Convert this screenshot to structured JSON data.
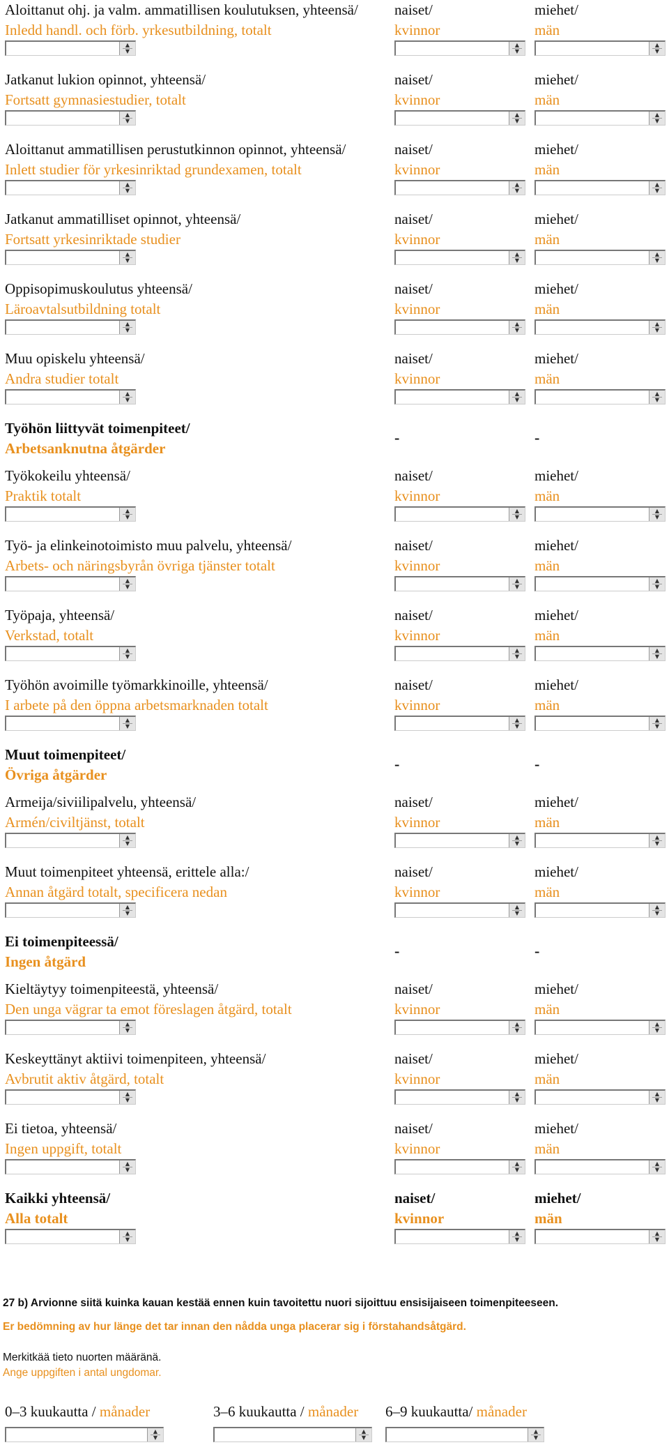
{
  "rows": [
    {
      "fi": "Aloittanut ohj. ja valm. ammatillisen koulutuksen, yhteensä/",
      "sv": "Inledd handl. och förb. yrkesutbildning, totalt",
      "col2_fi": "naiset/",
      "col2_sv": "kvinnor",
      "col3_fi": "miehet/",
      "col3_sv": "män"
    },
    {
      "fi": "Jatkanut lukion opinnot, yhteensä/",
      "sv": "Fortsatt gymnasiestudier, totalt",
      "col2_fi": "naiset/",
      "col2_sv": "kvinnor",
      "col3_fi": "miehet/",
      "col3_sv": "män"
    },
    {
      "fi": "Aloittanut ammatillisen perustutkinnon opinnot, yhteensä/",
      "sv": "Inlett studier för yrkesinriktad grundexamen, totalt",
      "col2_fi": "naiset/",
      "col2_sv": "kvinnor",
      "col3_fi": "miehet/",
      "col3_sv": "män"
    },
    {
      "fi": "Jatkanut ammatilliset opinnot, yhteensä/",
      "sv": "Fortsatt yrkesinriktade studier",
      "col2_fi": "naiset/",
      "col2_sv": "kvinnor",
      "col3_fi": "miehet/",
      "col3_sv": "män"
    },
    {
      "fi": "Oppisopimuskoulutus yhteensä/",
      "sv": "Läroavtalsutbildning totalt",
      "col2_fi": "naiset/",
      "col2_sv": "kvinnor",
      "col3_fi": "miehet/",
      "col3_sv": "män"
    },
    {
      "fi": "Muu opiskelu yhteensä/",
      "sv": "Andra studier totalt",
      "col2_fi": "naiset/",
      "col2_sv": "kvinnor",
      "col3_fi": "miehet/",
      "col3_sv": "män"
    },
    {
      "fi": "Työkokeilu yhteensä/",
      "sv": "Praktik totalt",
      "col2_fi": "naiset/",
      "col2_sv": "kvinnor",
      "col3_fi": "miehet/",
      "col3_sv": "män"
    },
    {
      "fi": "Työ- ja elinkeinotoimisto muu palvelu, yhteensä/",
      "sv": "Arbets- och näringsbyrån övriga tjänster totalt",
      "col2_fi": "naiset/",
      "col2_sv": "kvinnor",
      "col3_fi": "miehet/",
      "col3_sv": "män"
    },
    {
      "fi": "Työpaja, yhteensä/",
      "sv": "Verkstad, totalt",
      "col2_fi": "naiset/",
      "col2_sv": "kvinnor",
      "col3_fi": "miehet/",
      "col3_sv": "män"
    },
    {
      "fi": "Työhön avoimille työmarkkinoille, yhteensä/",
      "sv": "I arbete på den öppna arbetsmarknaden totalt",
      "col2_fi": "naiset/",
      "col2_sv": "kvinnor",
      "col3_fi": "miehet/",
      "col3_sv": "män"
    },
    {
      "fi": "Armeija/siviilipalvelu, yhteensä/",
      "sv": "Armén/civiltjänst, totalt",
      "col2_fi": "naiset/",
      "col2_sv": "kvinnor",
      "col3_fi": "miehet/",
      "col3_sv": "män"
    },
    {
      "fi": "Muut toimenpiteet yhteensä, erittele alla:/",
      "sv": "Annan åtgärd totalt, specificera nedan",
      "col2_fi": "naiset/",
      "col2_sv": "kvinnor",
      "col3_fi": "miehet/",
      "col3_sv": "män"
    },
    {
      "fi": "Kieltäytyy toimenpiteestä, yhteensä/",
      "sv": "Den unga vägrar ta emot föreslagen åtgärd, totalt",
      "col2_fi": "naiset/",
      "col2_sv": "kvinnor",
      "col3_fi": "miehet/",
      "col3_sv": "män"
    },
    {
      "fi": "Keskeyttänyt aktiivi toimenpiteen, yhteensä/",
      "sv": "Avbrutit aktiv åtgärd, totalt",
      "col2_fi": "naiset/",
      "col2_sv": "kvinnor",
      "col3_fi": "miehet/",
      "col3_sv": "män"
    },
    {
      "fi": "Ei tietoa, yhteensä/",
      "sv": "Ingen uppgift, totalt",
      "col2_fi": "naiset/",
      "col2_sv": "kvinnor",
      "col3_fi": "miehet/",
      "col3_sv": "män"
    },
    {
      "fi": "Kaikki yhteensä/",
      "sv": "Alla totalt",
      "col2_fi": "naiset/",
      "col2_sv": "kvinnor",
      "col3_fi": "miehet/",
      "col3_sv": "män"
    }
  ],
  "sections": [
    {
      "fi": "Työhön liittyvät toimenpiteet/",
      "sv": "Arbetsanknutna åtgärder",
      "dash2": "-",
      "dash3": "-"
    },
    {
      "fi": "Muut toimenpiteet/",
      "sv": "Övriga åtgärder",
      "dash2": "-",
      "dash3": "-"
    },
    {
      "fi": "Ei toimenpiteessä/",
      "sv": "Ingen åtgärd",
      "dash2": "-",
      "dash3": "-"
    }
  ],
  "question": {
    "title_fi": "27 b) Arvionne siitä kuinka kauan kestää ennen kuin tavoitettu nuori sijoittuu ensisijaiseen toimenpiteeseen.",
    "title_sv": "Er bedömning av hur länge det tar innan den nådda unga placerar sig i förstahandsåtgärd.",
    "instr_fi": "Merkitkää tieto nuorten määränä.",
    "instr_sv": "Ange uppgiften i antal ungdomar."
  },
  "durations": [
    {
      "fi": "0–3 kuukautta / ",
      "sv": "månader"
    },
    {
      "fi": "3–6 kuukautta / ",
      "sv": "månader"
    },
    {
      "fi": "6–9 kuukautta/ ",
      "sv": "månader"
    }
  ],
  "spinner": {
    "up": "▲",
    "down": "▼"
  },
  "colors": {
    "swedish": "#e8901e",
    "finnish": "#111111"
  }
}
